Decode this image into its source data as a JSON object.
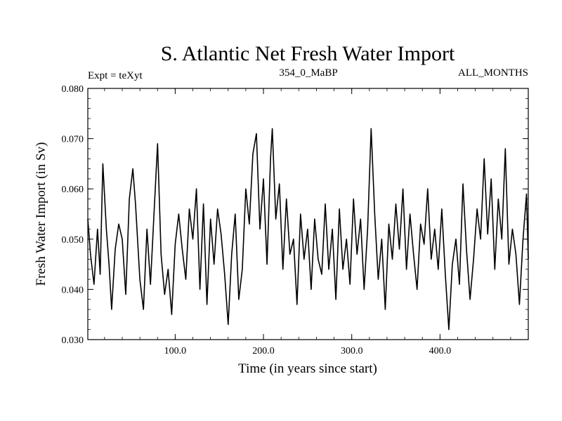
{
  "chart_data": {
    "type": "line",
    "title": "S. Atlantic Net Fresh Water Import",
    "subtitle_left": "Expt = teXyt",
    "subtitle_center": "354_0_MaBP",
    "subtitle_right": "ALL_MONTHS",
    "xlabel": "Time (in years since start)",
    "ylabel": "Fresh Water Import (in Sv)",
    "xlim": [
      1,
      500
    ],
    "ylim": [
      0.03,
      0.08
    ],
    "x_ticks": [
      100.0,
      200.0,
      300.0,
      400.0
    ],
    "x_tick_labels": [
      "100.0",
      "200.0",
      "300.0",
      "400.0"
    ],
    "y_ticks": [
      0.03,
      0.04,
      0.05,
      0.06,
      0.07,
      0.08
    ],
    "y_tick_labels": [
      "0.030",
      "0.040",
      "0.050",
      "0.060",
      "0.070",
      "0.080"
    ],
    "grid": false,
    "series": [
      {
        "color": "#000000",
        "x": [
          1,
          4,
          8,
          12,
          15,
          18,
          22,
          25,
          28,
          32,
          36,
          40,
          44,
          48,
          52,
          55,
          60,
          64,
          68,
          72,
          76,
          80,
          84,
          88,
          92,
          96,
          100,
          104,
          108,
          112,
          116,
          120,
          124,
          128,
          132,
          136,
          140,
          144,
          148,
          152,
          156,
          160,
          164,
          168,
          172,
          176,
          180,
          184,
          188,
          192,
          196,
          200,
          204,
          208,
          210,
          214,
          218,
          222,
          226,
          230,
          234,
          238,
          242,
          246,
          250,
          254,
          258,
          262,
          266,
          270,
          274,
          278,
          282,
          286,
          290,
          294,
          298,
          302,
          306,
          310,
          314,
          318,
          322,
          326,
          330,
          334,
          338,
          342,
          346,
          350,
          354,
          358,
          362,
          366,
          370,
          374,
          378,
          382,
          386,
          390,
          394,
          398,
          402,
          406,
          410,
          414,
          418,
          422,
          426,
          430,
          434,
          438,
          442,
          446,
          450,
          454,
          458,
          462,
          466,
          470,
          474,
          478,
          482,
          486,
          490,
          494,
          498,
          500
        ],
        "values": [
          0.054,
          0.047,
          0.041,
          0.052,
          0.043,
          0.065,
          0.052,
          0.045,
          0.036,
          0.048,
          0.053,
          0.05,
          0.039,
          0.058,
          0.064,
          0.057,
          0.042,
          0.036,
          0.052,
          0.041,
          0.055,
          0.069,
          0.047,
          0.039,
          0.044,
          0.035,
          0.049,
          0.055,
          0.048,
          0.042,
          0.056,
          0.05,
          0.06,
          0.04,
          0.057,
          0.037,
          0.054,
          0.045,
          0.056,
          0.051,
          0.043,
          0.033,
          0.047,
          0.055,
          0.038,
          0.044,
          0.06,
          0.053,
          0.067,
          0.071,
          0.052,
          0.062,
          0.045,
          0.066,
          0.072,
          0.054,
          0.061,
          0.044,
          0.058,
          0.047,
          0.05,
          0.037,
          0.055,
          0.046,
          0.052,
          0.04,
          0.054,
          0.046,
          0.043,
          0.057,
          0.044,
          0.052,
          0.038,
          0.056,
          0.044,
          0.05,
          0.041,
          0.058,
          0.047,
          0.054,
          0.04,
          0.052,
          0.072,
          0.055,
          0.042,
          0.05,
          0.036,
          0.053,
          0.046,
          0.057,
          0.048,
          0.06,
          0.044,
          0.055,
          0.047,
          0.04,
          0.053,
          0.049,
          0.06,
          0.046,
          0.052,
          0.044,
          0.056,
          0.043,
          0.032,
          0.045,
          0.05,
          0.041,
          0.061,
          0.048,
          0.038,
          0.046,
          0.056,
          0.05,
          0.066,
          0.051,
          0.062,
          0.044,
          0.058,
          0.05,
          0.068,
          0.045,
          0.052,
          0.047,
          0.037,
          0.05,
          0.059,
          0.046
        ]
      }
    ]
  }
}
